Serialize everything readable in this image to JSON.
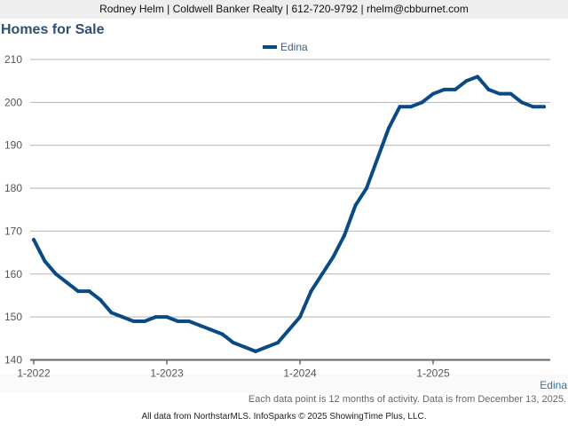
{
  "header": {
    "contact": "Rodney Helm | Coldwell Banker Realty | 612-720-9792 | rhelm@cbburnet.com"
  },
  "chart_data": {
    "type": "line",
    "title": "Homes for Sale",
    "xlabel": "",
    "ylabel": "",
    "ylim": [
      140,
      210
    ],
    "yticks": [
      "140",
      "150",
      "160",
      "170",
      "180",
      "190",
      "200",
      "210"
    ],
    "xticks": [
      "1-2022",
      "1-2023",
      "1-2024",
      "1-2025"
    ],
    "grid": true,
    "legend_position": "top-center",
    "series": [
      {
        "name": "Edina",
        "color": "#0a4a85",
        "values": [
          168,
          163,
          160,
          158,
          156,
          156,
          154,
          151,
          150,
          149,
          149,
          150,
          150,
          149,
          149,
          148,
          147,
          146,
          144,
          143,
          142,
          143,
          144,
          147,
          150,
          156,
          160,
          164,
          169,
          176,
          180,
          187,
          194,
          199,
          199,
          200,
          202,
          203,
          203,
          205,
          206,
          203,
          202,
          202,
          200,
          199,
          199
        ]
      }
    ]
  },
  "series_label": "Edina",
  "note": "Each data point is 12 months of activity. Data is from December 13, 2025.",
  "credit": "All data from NorthstarMLS. InfoSparks © 2025 ShowingTime Plus, LLC."
}
